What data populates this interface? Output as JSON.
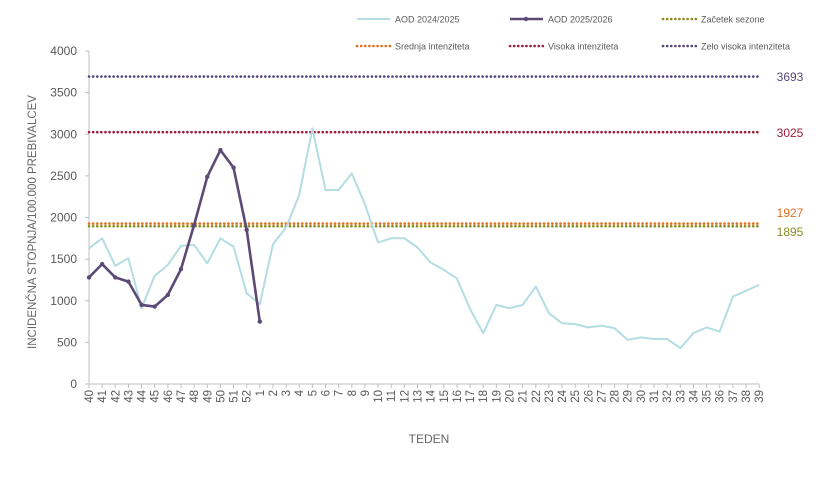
{
  "chart_data": {
    "type": "line",
    "xlabel": "TEDEN",
    "ylabel": "INCIDENČNA  STOPNJA/100.000  PREBIVALCEV",
    "ylim": [
      0,
      4000
    ],
    "yticks": [
      "0",
      "500",
      "1000",
      "1500",
      "2000",
      "2500",
      "3000",
      "3500",
      "4000"
    ],
    "grid": false,
    "legend_position": "top",
    "categories": [
      "40",
      "41",
      "42",
      "43",
      "44",
      "45",
      "46",
      "47",
      "48",
      "49",
      "50",
      "51",
      "52",
      "1",
      "2",
      "3",
      "4",
      "5",
      "6",
      "7",
      "8",
      "9",
      "10",
      "11",
      "12",
      "13",
      "14",
      "15",
      "16",
      "17",
      "18",
      "19",
      "20",
      "21",
      "22",
      "23",
      "24",
      "25",
      "26",
      "27",
      "28",
      "29",
      "30",
      "31",
      "32",
      "33",
      "34",
      "35",
      "36",
      "37",
      "38",
      "39"
    ],
    "series": [
      {
        "name": "AOD 2024/2025",
        "color": "#b4dde3",
        "markers": false,
        "values": [
          1630,
          1750,
          1420,
          1510,
          910,
          1300,
          1430,
          1660,
          1670,
          1450,
          1750,
          1650,
          1090,
          960,
          1680,
          1880,
          2270,
          3070,
          2330,
          2330,
          2530,
          2160,
          1700,
          1750,
          1750,
          1640,
          1460,
          1370,
          1270,
          900,
          610,
          950,
          910,
          950,
          1170,
          850,
          730,
          720,
          680,
          700,
          670,
          530,
          560,
          540,
          540,
          430,
          610,
          680,
          630,
          1050,
          1120,
          1190
        ]
      },
      {
        "name": "AOD 2025/2026",
        "color": "#5b4a75",
        "markers": true,
        "values": [
          1280,
          1440,
          1280,
          1230,
          950,
          930,
          1070,
          1380,
          1910,
          2490,
          2810,
          2600,
          1850,
          750,
          null,
          null,
          null,
          null,
          null,
          null,
          null,
          null,
          null,
          null,
          null,
          null,
          null,
          null,
          null,
          null,
          null,
          null,
          null,
          null,
          null,
          null,
          null,
          null,
          null,
          null,
          null,
          null,
          null,
          null,
          null,
          null,
          null,
          null,
          null,
          null,
          null,
          null
        ]
      }
    ],
    "thresholds": [
      {
        "name": "Začetek sezone",
        "value": 1895,
        "label": "1895",
        "color": "#8b8b1e"
      },
      {
        "name": "Srednja intenziteta",
        "value": 1927,
        "label": "1927",
        "color": "#e07020"
      },
      {
        "name": "Visoka intenziteta",
        "value": 3025,
        "label": "3025",
        "color": "#9e1b3a"
      },
      {
        "name": "Zelo visoka intenziteta",
        "value": 3693,
        "label": "3693",
        "color": "#55467a"
      }
    ]
  }
}
